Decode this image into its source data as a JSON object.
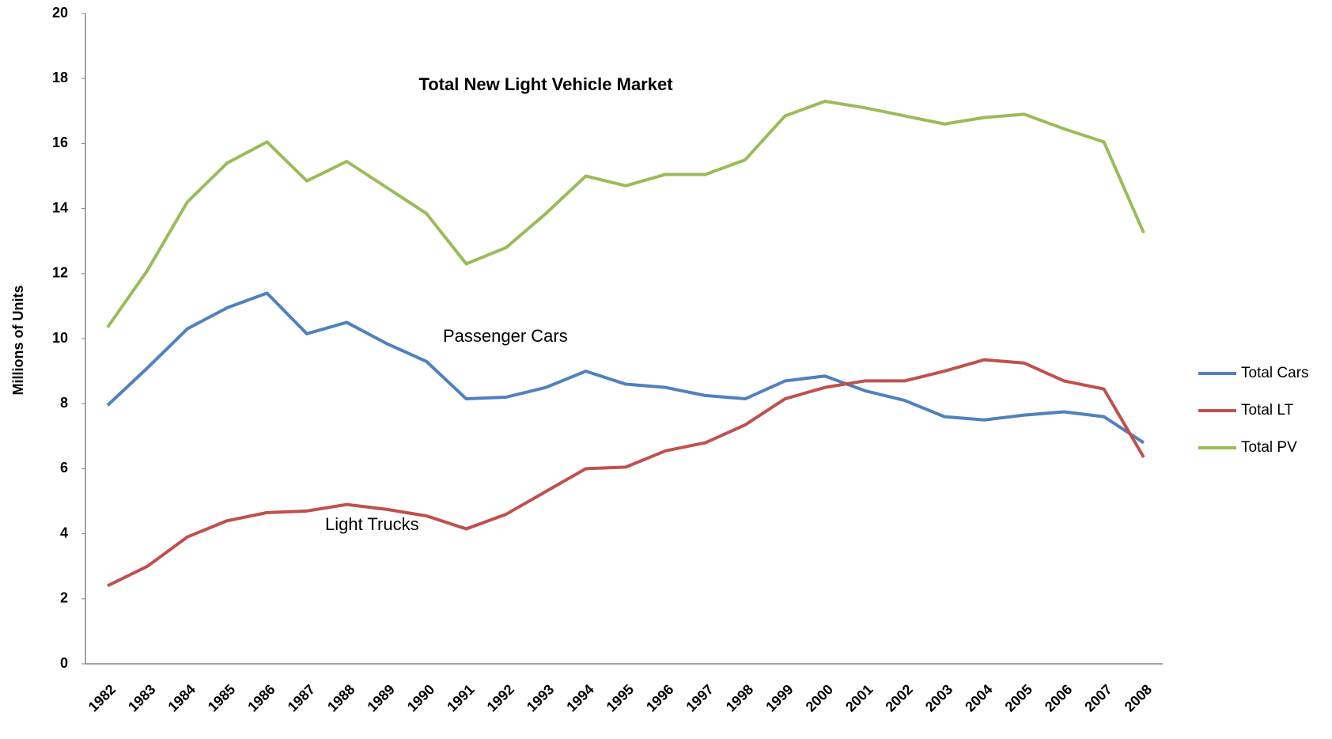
{
  "chart_data": {
    "type": "line",
    "annotations": [
      "Total New Light Vehicle Market",
      "Passenger Cars",
      "Light Trucks"
    ],
    "y_label": "Millions of Units",
    "categories": [
      "1982",
      "1983",
      "1984",
      "1985",
      "1986",
      "1987",
      "1988",
      "1989",
      "1990",
      "1991",
      "1992",
      "1993",
      "1994",
      "1995",
      "1996",
      "1997",
      "1998",
      "1999",
      "2000",
      "2001",
      "2002",
      "2003",
      "2004",
      "2005",
      "2006",
      "2007",
      "2008"
    ],
    "series": [
      {
        "name": "Total Cars",
        "color": "#4f81bd",
        "values": [
          7.95,
          9.1,
          10.3,
          10.95,
          11.4,
          10.15,
          10.5,
          9.85,
          9.3,
          8.15,
          8.2,
          8.5,
          9.0,
          8.6,
          8.5,
          8.25,
          8.15,
          8.7,
          8.85,
          8.4,
          8.1,
          7.6,
          7.5,
          7.65,
          7.75,
          7.6,
          6.8
        ]
      },
      {
        "name": "Total LT",
        "color": "#c0504d",
        "values": [
          2.4,
          3.0,
          3.9,
          4.4,
          4.65,
          4.7,
          4.9,
          4.75,
          4.55,
          4.15,
          4.6,
          5.3,
          6.0,
          6.05,
          6.55,
          6.8,
          7.35,
          8.15,
          8.5,
          8.7,
          8.7,
          9.0,
          9.35,
          9.25,
          8.7,
          8.45,
          6.35
        ]
      },
      {
        "name": "Total PV",
        "color": "#9bbb59",
        "values": [
          10.35,
          12.1,
          14.2,
          15.4,
          16.05,
          14.85,
          15.45,
          14.65,
          13.85,
          12.3,
          12.8,
          13.85,
          15.0,
          14.7,
          15.05,
          15.05,
          15.5,
          16.85,
          17.3,
          17.1,
          16.85,
          16.6,
          16.8,
          16.9,
          16.45,
          16.05,
          13.25
        ]
      }
    ],
    "ylim": [
      0,
      20
    ],
    "yticks": [
      0,
      2,
      4,
      6,
      8,
      10,
      12,
      14,
      16,
      18,
      20
    ],
    "grid": false,
    "legend": "right"
  }
}
